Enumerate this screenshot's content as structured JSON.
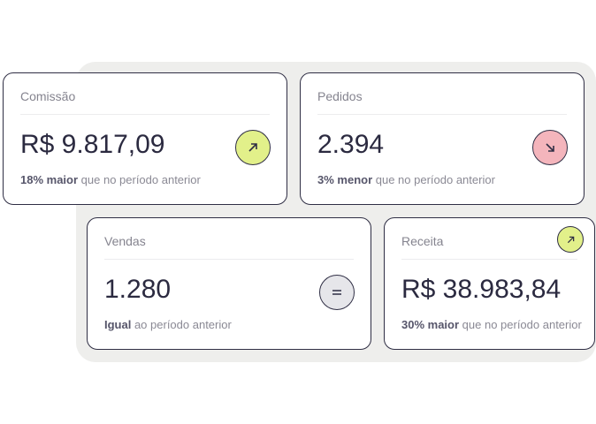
{
  "colors": {
    "up": "#e2f08a",
    "down": "#f4b5bc",
    "equal": "#e6e6ea",
    "border": "#2f2e44"
  },
  "cards": [
    {
      "label": "Comissão",
      "value": "R$ 9.817,09",
      "highlight": "18% maior",
      "note": " que no período anterior",
      "trend": "up",
      "icon": "arrow-up-right-icon"
    },
    {
      "label": "Pedidos",
      "value": "2.394",
      "highlight": "3% menor",
      "note": " que no período anterior",
      "trend": "down",
      "icon": "arrow-down-right-icon"
    },
    {
      "label": "Vendas",
      "value": "1.280",
      "highlight": "Igual",
      "note": " ao período anterior",
      "trend": "equal",
      "icon": "equals-icon"
    },
    {
      "label": "Receita",
      "value": "R$ 38.983,84",
      "highlight": "30% maior",
      "note": " que no período anterior",
      "trend": "up",
      "icon": "arrow-up-right-icon"
    }
  ]
}
